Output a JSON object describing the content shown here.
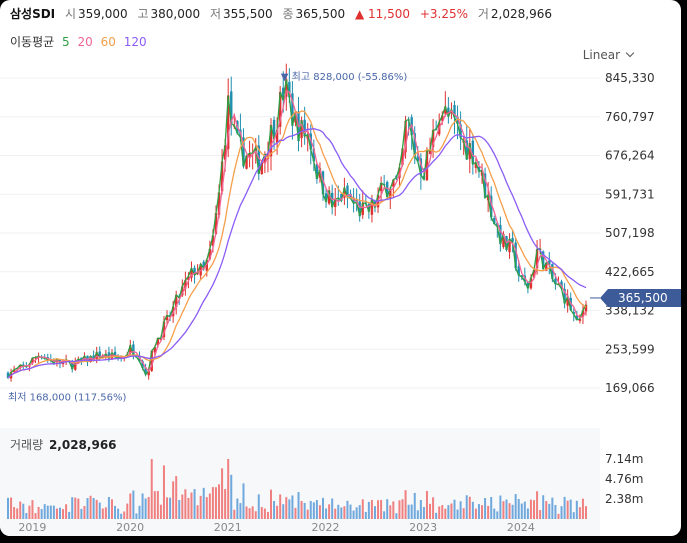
{
  "header": {
    "name": "삼성SDI",
    "open_label": "시",
    "open": "359,000",
    "high_label": "고",
    "high": "380,000",
    "low_label": "저",
    "low": "355,500",
    "close_label": "종",
    "close": "365,500",
    "change": "▲ 11,500",
    "change_pct": "+3.25%",
    "volume_label": "거",
    "volume": "2,028,966"
  },
  "ma": {
    "label": "이동평균",
    "periods": [
      "5",
      "20",
      "60",
      "120"
    ]
  },
  "scale_mode": "Linear",
  "volume_panel": {
    "label": "거래량",
    "value": "2,028,966"
  },
  "colors": {
    "up": "#e03131",
    "down": "#1f8fb0",
    "ma5": "#2f9e44",
    "ma20": "#f06595",
    "ma60": "#f59f4b",
    "ma120": "#8b5cf6",
    "price_tag": "#3d5a99",
    "vol_up": "#f08080",
    "vol_down": "#6fa8dc"
  },
  "chart_data": {
    "type": "candlestick",
    "y_ticks": [
      "845,330",
      "760,797",
      "676,264",
      "591,731",
      "507,198",
      "422,665",
      "338,132",
      "253,599",
      "169,066"
    ],
    "x_ticks": [
      "2019",
      "2020",
      "2021",
      "2022",
      "2023",
      "2024"
    ],
    "last_price_label": "365,500",
    "max_annotation": "▼ 최고 828,000 (-55.86%)",
    "min_annotation": "최저 168,000 (117.56%)",
    "volume_ticks": [
      "7.14m",
      "4.76m",
      "2.38m"
    ],
    "price_path": [
      [
        "2018-10",
        200000
      ],
      [
        "2018-12",
        215000
      ],
      [
        "2019-02",
        245000
      ],
      [
        "2019-03",
        230000
      ],
      [
        "2019-06",
        220000
      ],
      [
        "2019-09",
        240000
      ],
      [
        "2019-12",
        235000
      ],
      [
        "2020-01",
        255000
      ],
      [
        "2020-02",
        245000
      ],
      [
        "2020-03",
        195000
      ],
      [
        "2020-04",
        265000
      ],
      [
        "2020-06",
        330000
      ],
      [
        "2020-07",
        370000
      ],
      [
        "2020-08",
        400000
      ],
      [
        "2020-09",
        430000
      ],
      [
        "2020-10",
        420000
      ],
      [
        "2020-11",
        470000
      ],
      [
        "2020-12",
        600000
      ],
      [
        "2021-01",
        790000
      ],
      [
        "2021-02",
        700000
      ],
      [
        "2021-03",
        680000
      ],
      [
        "2021-05",
        660000
      ],
      [
        "2021-07",
        760000
      ],
      [
        "2021-08",
        828000
      ],
      [
        "2021-09",
        760000
      ],
      [
        "2021-10",
        730000
      ],
      [
        "2021-11",
        720000
      ],
      [
        "2021-12",
        640000
      ],
      [
        "2022-01",
        600000
      ],
      [
        "2022-02",
        560000
      ],
      [
        "2022-03",
        590000
      ],
      [
        "2022-04",
        580000
      ],
      [
        "2022-05",
        560000
      ],
      [
        "2022-06",
        550000
      ],
      [
        "2022-07",
        570000
      ],
      [
        "2022-08",
        600000
      ],
      [
        "2022-09",
        620000
      ],
      [
        "2022-10",
        610000
      ],
      [
        "2022-11",
        760000
      ],
      [
        "2022-12",
        680000
      ],
      [
        "2023-01",
        640000
      ],
      [
        "2023-02",
        700000
      ],
      [
        "2023-03",
        780000
      ],
      [
        "2023-04",
        760000
      ],
      [
        "2023-05",
        740000
      ],
      [
        "2023-06",
        700000
      ],
      [
        "2023-07",
        690000
      ],
      [
        "2023-08",
        640000
      ],
      [
        "2023-09",
        580000
      ],
      [
        "2023-10",
        520000
      ],
      [
        "2023-11",
        480000
      ],
      [
        "2023-12",
        470000
      ],
      [
        "2024-01",
        400000
      ],
      [
        "2024-02",
        390000
      ],
      [
        "2024-03",
        470000
      ],
      [
        "2024-04",
        440000
      ],
      [
        "2024-05",
        400000
      ],
      [
        "2024-06",
        380000
      ],
      [
        "2024-07",
        350000
      ],
      [
        "2024-08",
        300000
      ],
      [
        "2024-09",
        365500
      ]
    ]
  }
}
